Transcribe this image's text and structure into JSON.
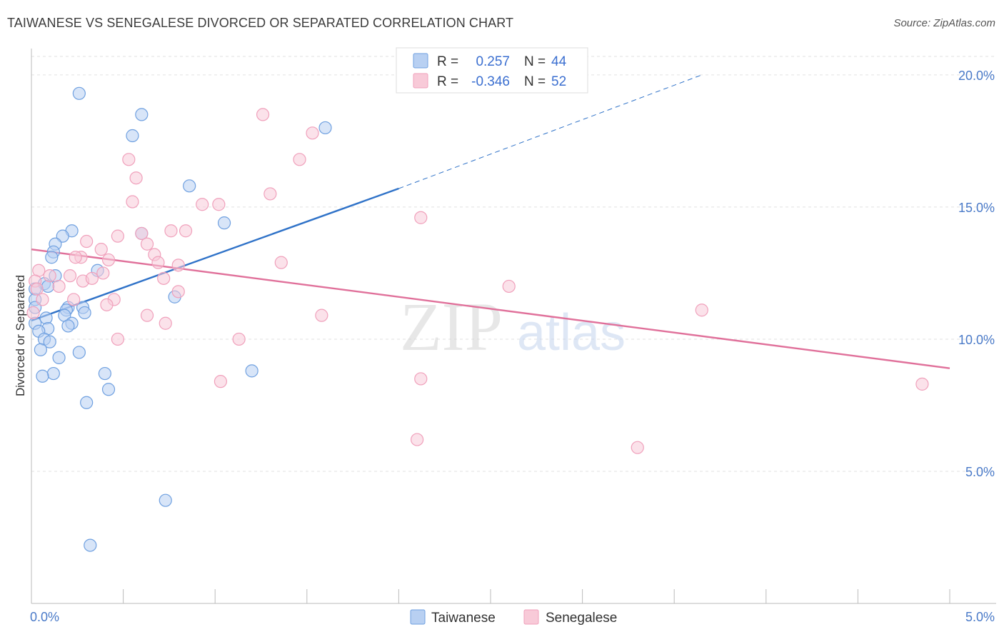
{
  "title": "TAIWANESE VS SENEGALESE DIVORCED OR SEPARATED CORRELATION CHART",
  "source": "Source: ZipAtlas.com",
  "watermark": {
    "zip": "ZIP",
    "atlas": "atlas"
  },
  "chart_data": {
    "type": "scatter",
    "title": "TAIWANESE VS SENEGALESE DIVORCED OR SEPARATED CORRELATION CHART",
    "xlabel": "",
    "ylabel": "Divorced or Separated",
    "xlim": [
      0,
      5
    ],
    "ylim": [
      0,
      20.7
    ],
    "x_tick_labels": [
      "0.0%",
      "5.0%"
    ],
    "x_ticks": [
      0,
      5
    ],
    "y_ticks": [
      5,
      10,
      15,
      20
    ],
    "y_tick_labels": [
      "5.0%",
      "10.0%",
      "15.0%",
      "20.0%"
    ],
    "grid": true,
    "legend_position": "top-center",
    "legend": [
      {
        "r_label": "R =",
        "r_value": "0.257",
        "n_label": "N =",
        "n_value": "44"
      },
      {
        "r_label": "R =",
        "r_value": "-0.346",
        "n_label": "N =",
        "n_value": "52"
      }
    ],
    "series": [
      {
        "name": "Taiwanese",
        "color": "#6fa0e0",
        "fill": "#b8d0f2",
        "trend_color": "#2f72c8",
        "trend": {
          "x0": 0,
          "y0": 10.7,
          "x1": 2.0,
          "y1": 15.7,
          "dash_to_x": 3.65,
          "dash_to_y": 20.0
        },
        "points": [
          [
            0.26,
            19.3
          ],
          [
            0.6,
            18.5
          ],
          [
            1.6,
            18.0
          ],
          [
            0.55,
            17.7
          ],
          [
            0.86,
            15.8
          ],
          [
            1.05,
            14.4
          ],
          [
            0.22,
            14.1
          ],
          [
            0.6,
            14.0
          ],
          [
            0.17,
            13.9
          ],
          [
            0.13,
            13.6
          ],
          [
            0.12,
            13.3
          ],
          [
            0.11,
            13.1
          ],
          [
            0.36,
            12.6
          ],
          [
            0.13,
            12.4
          ],
          [
            0.07,
            12.1
          ],
          [
            0.09,
            12.0
          ],
          [
            0.02,
            11.9
          ],
          [
            0.02,
            11.5
          ],
          [
            0.78,
            11.6
          ],
          [
            0.2,
            11.2
          ],
          [
            0.28,
            11.2
          ],
          [
            0.19,
            11.1
          ],
          [
            0.29,
            11.0
          ],
          [
            0.18,
            10.9
          ],
          [
            0.08,
            10.8
          ],
          [
            0.02,
            10.6
          ],
          [
            0.22,
            10.6
          ],
          [
            0.2,
            10.5
          ],
          [
            0.09,
            10.4
          ],
          [
            0.04,
            10.3
          ],
          [
            0.07,
            10.0
          ],
          [
            0.1,
            9.9
          ],
          [
            0.05,
            9.6
          ],
          [
            0.26,
            9.5
          ],
          [
            0.15,
            9.3
          ],
          [
            0.12,
            8.7
          ],
          [
            0.06,
            8.6
          ],
          [
            0.4,
            8.7
          ],
          [
            1.2,
            8.8
          ],
          [
            0.42,
            8.1
          ],
          [
            0.3,
            7.6
          ],
          [
            0.73,
            3.9
          ],
          [
            0.32,
            2.2
          ],
          [
            0.02,
            11.2
          ]
        ]
      },
      {
        "name": "Senegalese",
        "color": "#f0a0bb",
        "fill": "#f8cad8",
        "trend_color": "#e0709a",
        "trend": {
          "x0": 0,
          "y0": 13.4,
          "x1": 5.0,
          "y1": 8.9
        },
        "points": [
          [
            1.26,
            18.5
          ],
          [
            1.53,
            17.8
          ],
          [
            0.53,
            16.8
          ],
          [
            1.46,
            16.8
          ],
          [
            0.57,
            16.1
          ],
          [
            1.3,
            15.5
          ],
          [
            0.55,
            15.2
          ],
          [
            0.93,
            15.1
          ],
          [
            1.02,
            15.1
          ],
          [
            2.12,
            14.6
          ],
          [
            0.84,
            14.1
          ],
          [
            0.76,
            14.1
          ],
          [
            0.6,
            14.0
          ],
          [
            0.47,
            13.9
          ],
          [
            0.3,
            13.7
          ],
          [
            0.63,
            13.6
          ],
          [
            0.38,
            13.4
          ],
          [
            0.67,
            13.2
          ],
          [
            0.27,
            13.1
          ],
          [
            0.24,
            13.1
          ],
          [
            0.42,
            13.0
          ],
          [
            0.69,
            12.9
          ],
          [
            1.36,
            12.9
          ],
          [
            0.8,
            12.8
          ],
          [
            0.04,
            12.6
          ],
          [
            0.39,
            12.5
          ],
          [
            0.21,
            12.4
          ],
          [
            0.1,
            12.4
          ],
          [
            0.72,
            12.3
          ],
          [
            0.28,
            12.2
          ],
          [
            0.33,
            12.3
          ],
          [
            0.02,
            12.2
          ],
          [
            0.15,
            12.0
          ],
          [
            0.03,
            11.9
          ],
          [
            2.6,
            12.0
          ],
          [
            0.8,
            11.8
          ],
          [
            0.06,
            11.5
          ],
          [
            0.23,
            11.5
          ],
          [
            0.45,
            11.5
          ],
          [
            0.41,
            11.3
          ],
          [
            3.65,
            11.1
          ],
          [
            0.63,
            10.9
          ],
          [
            1.58,
            10.9
          ],
          [
            0.73,
            10.6
          ],
          [
            0.47,
            10.0
          ],
          [
            1.13,
            10.0
          ],
          [
            0.01,
            11.0
          ],
          [
            2.12,
            8.5
          ],
          [
            1.03,
            8.4
          ],
          [
            4.85,
            8.3
          ],
          [
            2.1,
            6.2
          ],
          [
            3.3,
            5.9
          ]
        ]
      }
    ]
  }
}
